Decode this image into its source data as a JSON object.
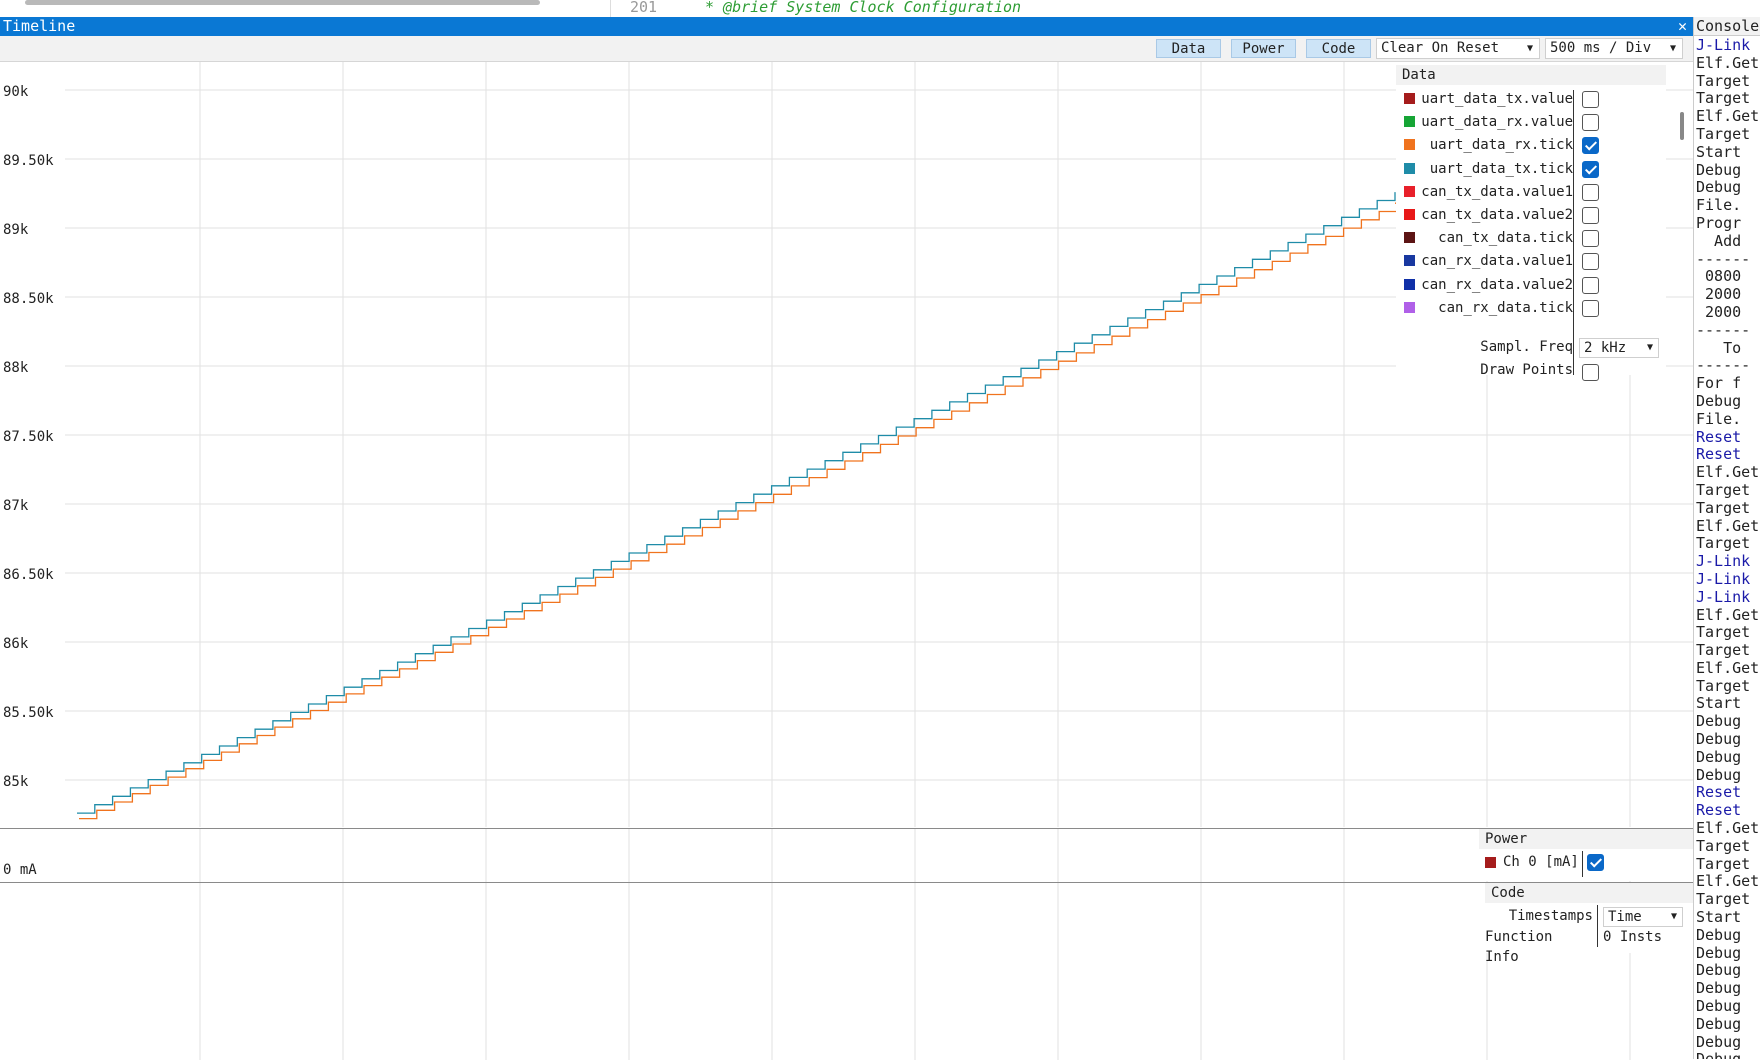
{
  "code_strip": {
    "line_number": "201",
    "line_text": "* @brief System Clock Configuration"
  },
  "window": {
    "title": "Timeline",
    "close_glyph": "✕"
  },
  "toolbar": {
    "buttons": [
      "Data",
      "Power",
      "Code"
    ],
    "reset_mode": "Clear On Reset",
    "time_div": "500 ms / Div",
    "zoom_out_glyph": "−",
    "zoom_in_glyph": "+"
  },
  "chart_data": {
    "type": "line",
    "y_ticks": [
      "90k",
      "89.50k",
      "89k",
      "88.50k",
      "88k",
      "87.50k",
      "87k",
      "86.50k",
      "86k",
      "85.50k",
      "85k"
    ],
    "y_tick_values": [
      90000,
      89500,
      89000,
      88500,
      88000,
      87500,
      87000,
      86500,
      86000,
      85500,
      85000
    ],
    "ylim": [
      84700,
      90200
    ],
    "grid": true,
    "series": [
      {
        "name": "uart_data_rx.tick",
        "color": "#f0731e",
        "style": "step",
        "start": 84720,
        "end": 89180,
        "steps": 74
      },
      {
        "name": "uart_data_tx.tick",
        "color": "#1f8ca8",
        "style": "step",
        "start": 84760,
        "end": 89260,
        "steps": 74
      }
    ]
  },
  "data_panel": {
    "title": "Data",
    "series": [
      {
        "name": "uart_data_tx.value",
        "color": "#a51c1c",
        "checked": false
      },
      {
        "name": "uart_data_rx.value",
        "color": "#16a535",
        "checked": false
      },
      {
        "name": "uart_data_rx.tick",
        "color": "#f0731e",
        "checked": true
      },
      {
        "name": "uart_data_tx.tick",
        "color": "#1f8ca8",
        "checked": true
      },
      {
        "name": "can_tx_data.value1",
        "color": "#e8202a",
        "checked": false
      },
      {
        "name": "can_tx_data.value2",
        "color": "#e81818",
        "checked": false
      },
      {
        "name": "can_tx_data.tick",
        "color": "#5c1414",
        "checked": false
      },
      {
        "name": "can_rx_data.value1",
        "color": "#1838a0",
        "checked": false
      },
      {
        "name": "can_rx_data.value2",
        "color": "#1030a8",
        "checked": false
      },
      {
        "name": "can_rx_data.tick",
        "color": "#b060e8",
        "checked": false
      }
    ],
    "sampl_freq_label": "Sampl. Freq",
    "sampl_freq_value": "2 kHz",
    "draw_points_label": "Draw Points",
    "draw_points_checked": false
  },
  "power": {
    "axis_label": "0 mA",
    "panel_title": "Power",
    "channel_name": "Ch 0 [mA]",
    "channel_color": "#a51c1c",
    "channel_checked": true
  },
  "code_panel": {
    "title": "Code",
    "timestamps_label": "Timestamps",
    "timestamps_value": "Time",
    "function_info_label": "Function Info",
    "function_info_value": "0 Insts"
  },
  "console": {
    "title": "Console",
    "lines": [
      {
        "t": "J-Link",
        "blue": true
      },
      {
        "t": "Elf.Get",
        "blue": false
      },
      {
        "t": "Target",
        "blue": false
      },
      {
        "t": "Target",
        "blue": false
      },
      {
        "t": "Elf.Get",
        "blue": false
      },
      {
        "t": "Target",
        "blue": false
      },
      {
        "t": "Start",
        "blue": false
      },
      {
        "t": "Debug",
        "blue": false
      },
      {
        "t": "Debug",
        "blue": false
      },
      {
        "t": "File.",
        "blue": false
      },
      {
        "t": "Progr",
        "blue": false
      },
      {
        "t": "  Add",
        "blue": false
      },
      {
        "t": "------",
        "blue": false
      },
      {
        "t": " 0800",
        "blue": false
      },
      {
        "t": " 2000",
        "blue": false
      },
      {
        "t": " 2000",
        "blue": false
      },
      {
        "t": "------",
        "blue": false
      },
      {
        "t": "   To",
        "blue": false
      },
      {
        "t": "------",
        "blue": false
      },
      {
        "t": "For f",
        "blue": false
      },
      {
        "t": "Debug",
        "blue": false
      },
      {
        "t": "File.",
        "blue": false
      },
      {
        "t": "Reset",
        "blue": true
      },
      {
        "t": "Reset",
        "blue": true
      },
      {
        "t": "Elf.Get",
        "blue": false
      },
      {
        "t": "Target",
        "blue": false
      },
      {
        "t": "Target",
        "blue": false
      },
      {
        "t": "Elf.Get",
        "blue": false
      },
      {
        "t": "Target",
        "blue": false
      },
      {
        "t": "J-Link",
        "blue": true
      },
      {
        "t": "J-Link",
        "blue": true
      },
      {
        "t": "J-Link",
        "blue": true
      },
      {
        "t": "Elf.Get",
        "blue": false
      },
      {
        "t": "Target",
        "blue": false
      },
      {
        "t": "Target",
        "blue": false
      },
      {
        "t": "Elf.Get",
        "blue": false
      },
      {
        "t": "Target",
        "blue": false
      },
      {
        "t": "Start",
        "blue": false
      },
      {
        "t": "Debug",
        "blue": false
      },
      {
        "t": "Debug",
        "blue": false
      },
      {
        "t": "Debug",
        "blue": false
      },
      {
        "t": "Debug",
        "blue": false
      },
      {
        "t": "Reset",
        "blue": true
      },
      {
        "t": "Reset",
        "blue": true
      },
      {
        "t": "Elf.Get",
        "blue": false
      },
      {
        "t": "Target",
        "blue": false
      },
      {
        "t": "Target",
        "blue": false
      },
      {
        "t": "Elf.Get",
        "blue": false
      },
      {
        "t": "Target",
        "blue": false
      },
      {
        "t": "Start",
        "blue": false
      },
      {
        "t": "Debug",
        "blue": false
      },
      {
        "t": "Debug",
        "blue": false
      },
      {
        "t": "Debug",
        "blue": false
      },
      {
        "t": "Debug",
        "blue": false
      },
      {
        "t": "Debug",
        "blue": false
      },
      {
        "t": "Debug",
        "blue": false
      },
      {
        "t": "Debug",
        "blue": false
      },
      {
        "t": "Debug",
        "blue": false
      }
    ]
  }
}
